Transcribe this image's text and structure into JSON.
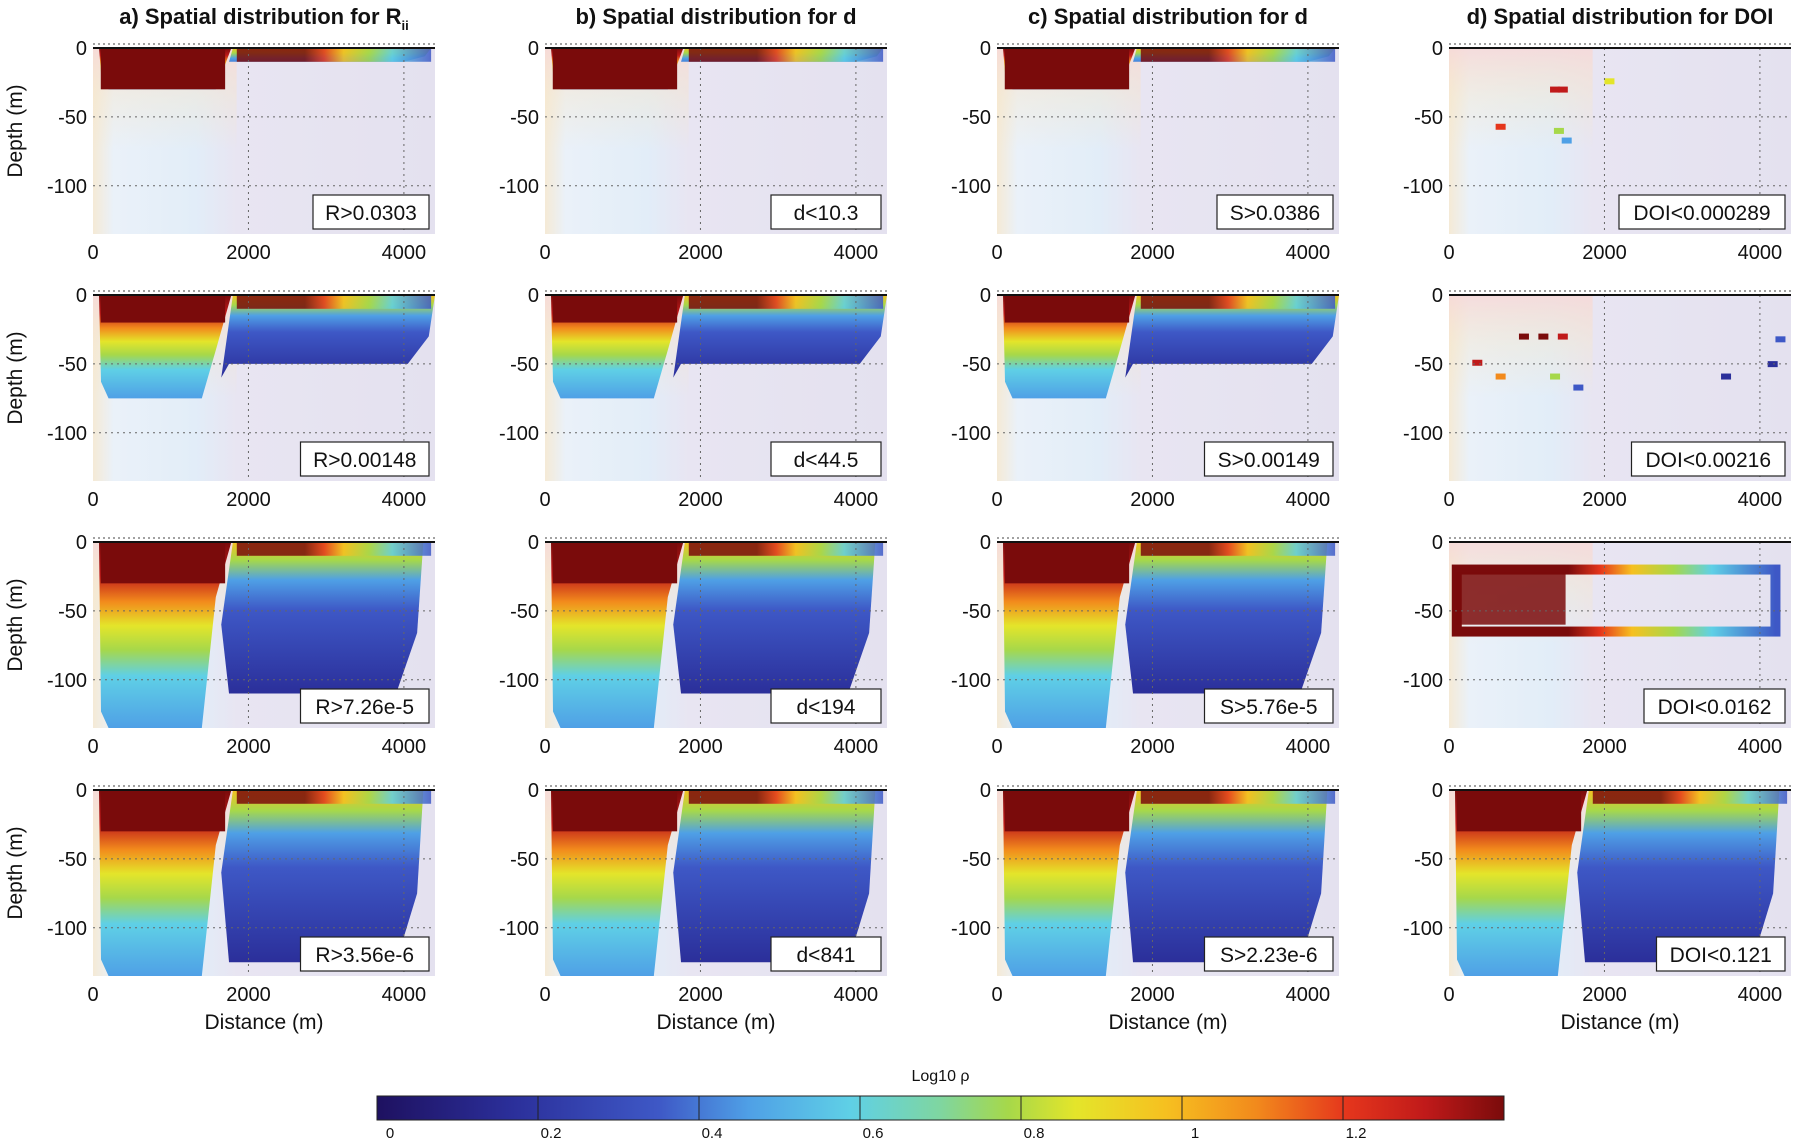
{
  "chart_data": {
    "type": "heatmap",
    "columns": [
      {
        "title_main": "a) Spatial distribution for R",
        "title_sub": "ii",
        "labels": [
          "R>0.0303",
          "R>0.00148",
          "R>7.26e-5",
          "R>3.56e-6"
        ]
      },
      {
        "title_main": "b) Spatial distribution for d",
        "title_sub": "",
        "labels": [
          "d<10.3",
          "d<44.5",
          "d<194",
          "d<841"
        ]
      },
      {
        "title_main": "c) Spatial distribution for d",
        "title_sub": "",
        "labels": [
          "S>0.0386",
          "S>0.00149",
          "S>5.76e-5",
          "S>2.23e-6"
        ]
      },
      {
        "title_main": "d) Spatial distribution for DOI",
        "title_sub": "",
        "labels": [
          "DOI<0.000289",
          "DOI<0.00216",
          "DOI<0.0162",
          "DOI<0.121"
        ]
      }
    ],
    "xlabel": "Distance (m)",
    "ylabel": "Depth (m)",
    "xlim": [
      0,
      4400
    ],
    "ylim": [
      -135,
      0
    ],
    "xticks": [
      0,
      2000,
      4000
    ],
    "yticks": [
      0,
      -50,
      -100
    ],
    "xtick_labels": [
      "0",
      "2000",
      "4000"
    ],
    "ytick_labels": [
      "0",
      "-50",
      "-100"
    ],
    "colorbar": {
      "title": "Log10 ρ",
      "range": [
        0,
        1.4
      ],
      "ticks": [
        0,
        0.2,
        0.4,
        0.6,
        0.8,
        1,
        1.2
      ],
      "tick_labels": [
        "0",
        "0.2",
        "0.4",
        "0.6",
        "0.8",
        "1",
        "1.2"
      ],
      "colormap": "jet"
    },
    "grid": true
  }
}
